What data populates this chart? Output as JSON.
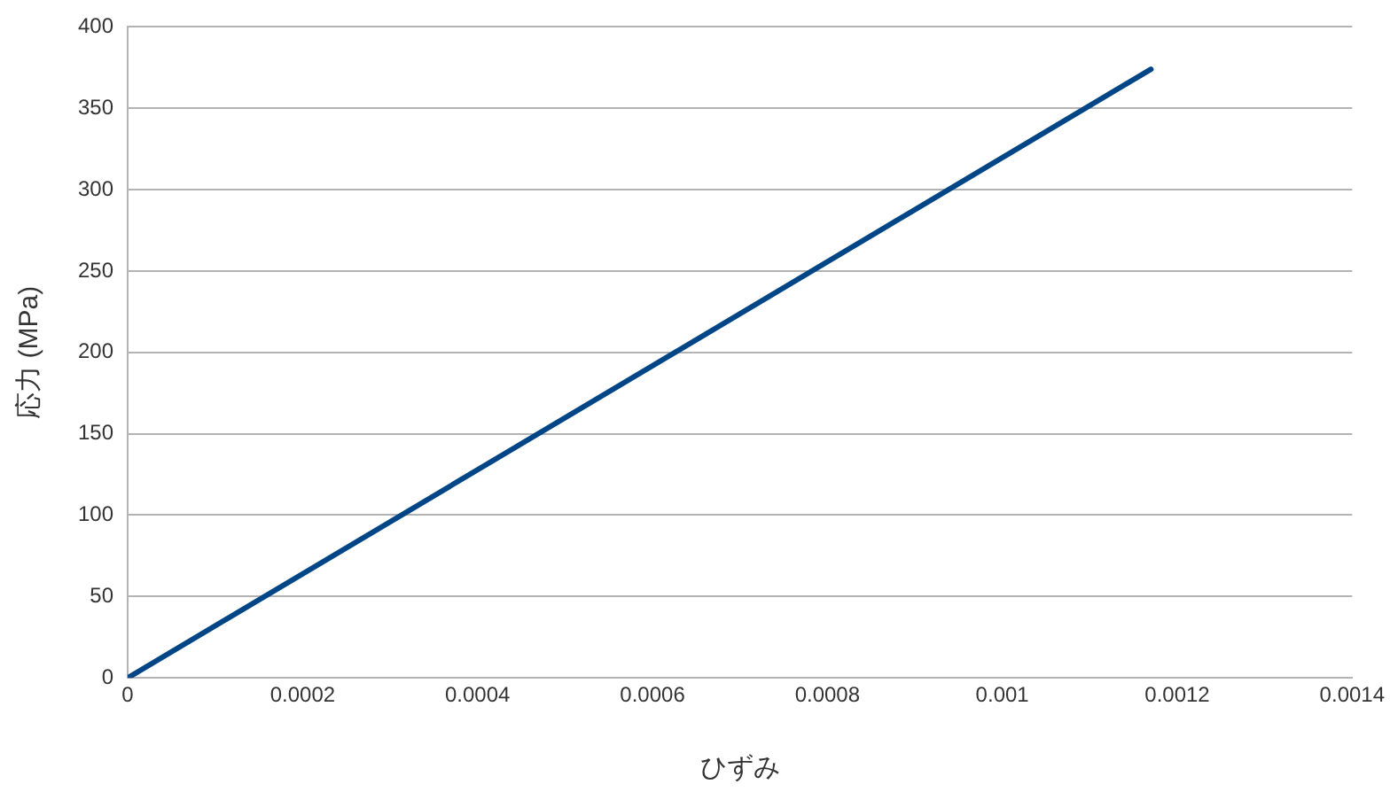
{
  "chart_data": {
    "type": "line",
    "xlabel": "ひずみ",
    "ylabel": "応力 (MPa)",
    "series": [
      {
        "color": "#004586",
        "x": [
          0,
          0.00117
        ],
        "values": [
          0,
          374
        ]
      }
    ],
    "xlim": [
      0,
      0.0014
    ],
    "xticks": [
      0,
      0.0002,
      0.0004,
      0.0006,
      0.0008,
      0.001,
      0.0012,
      0.0014
    ],
    "ylim": [
      0,
      400
    ],
    "yticks": [
      0,
      50,
      100,
      150,
      200,
      250,
      300,
      350,
      400
    ],
    "grid": "y",
    "legend": false,
    "marker": "none",
    "line_style": "solid"
  }
}
